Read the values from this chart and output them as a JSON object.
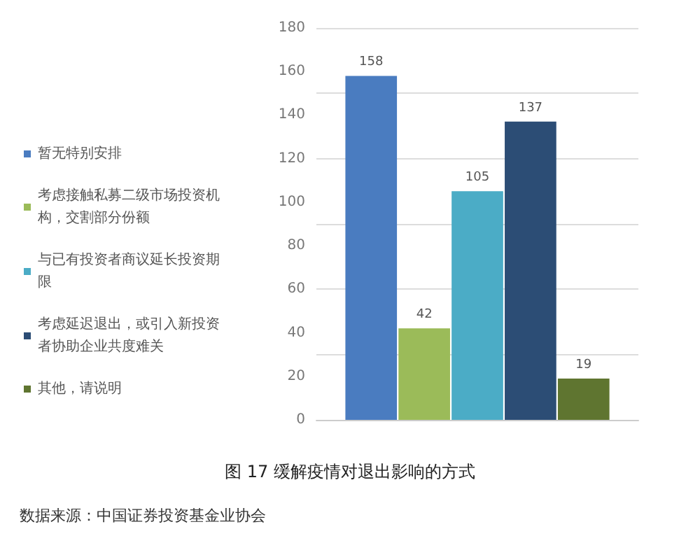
{
  "chart_data": {
    "type": "bar",
    "title": "图 17 缓解疫情对退出影响的方式",
    "annotations": [
      "数据来源：中国证券投资基金业协会"
    ],
    "categories": [
      null
    ],
    "series": [
      {
        "name": "暂无特别安排",
        "color": "#4a7cc0",
        "values": [
          158
        ]
      },
      {
        "name": "考虑接触私募二级市场投资机构，交割部分份额",
        "color": "#9bbb59",
        "values": [
          42
        ]
      },
      {
        "name": "与已有投资者商议延长投资期限",
        "color": "#4bacc6",
        "values": [
          105
        ]
      },
      {
        "name": "考虑延迟退出，或引入新投资者协助企业共度难关",
        "color": "#2c4d75",
        "values": [
          137
        ]
      },
      {
        "name": "其他，请说明",
        "color": "#5f7530",
        "values": [
          19
        ]
      }
    ],
    "ylim": [
      0,
      180
    ],
    "yticks": [
      0,
      20,
      40,
      60,
      80,
      100,
      120,
      140,
      160,
      180
    ],
    "grid": "y",
    "legend": "left",
    "data_labels": true
  }
}
